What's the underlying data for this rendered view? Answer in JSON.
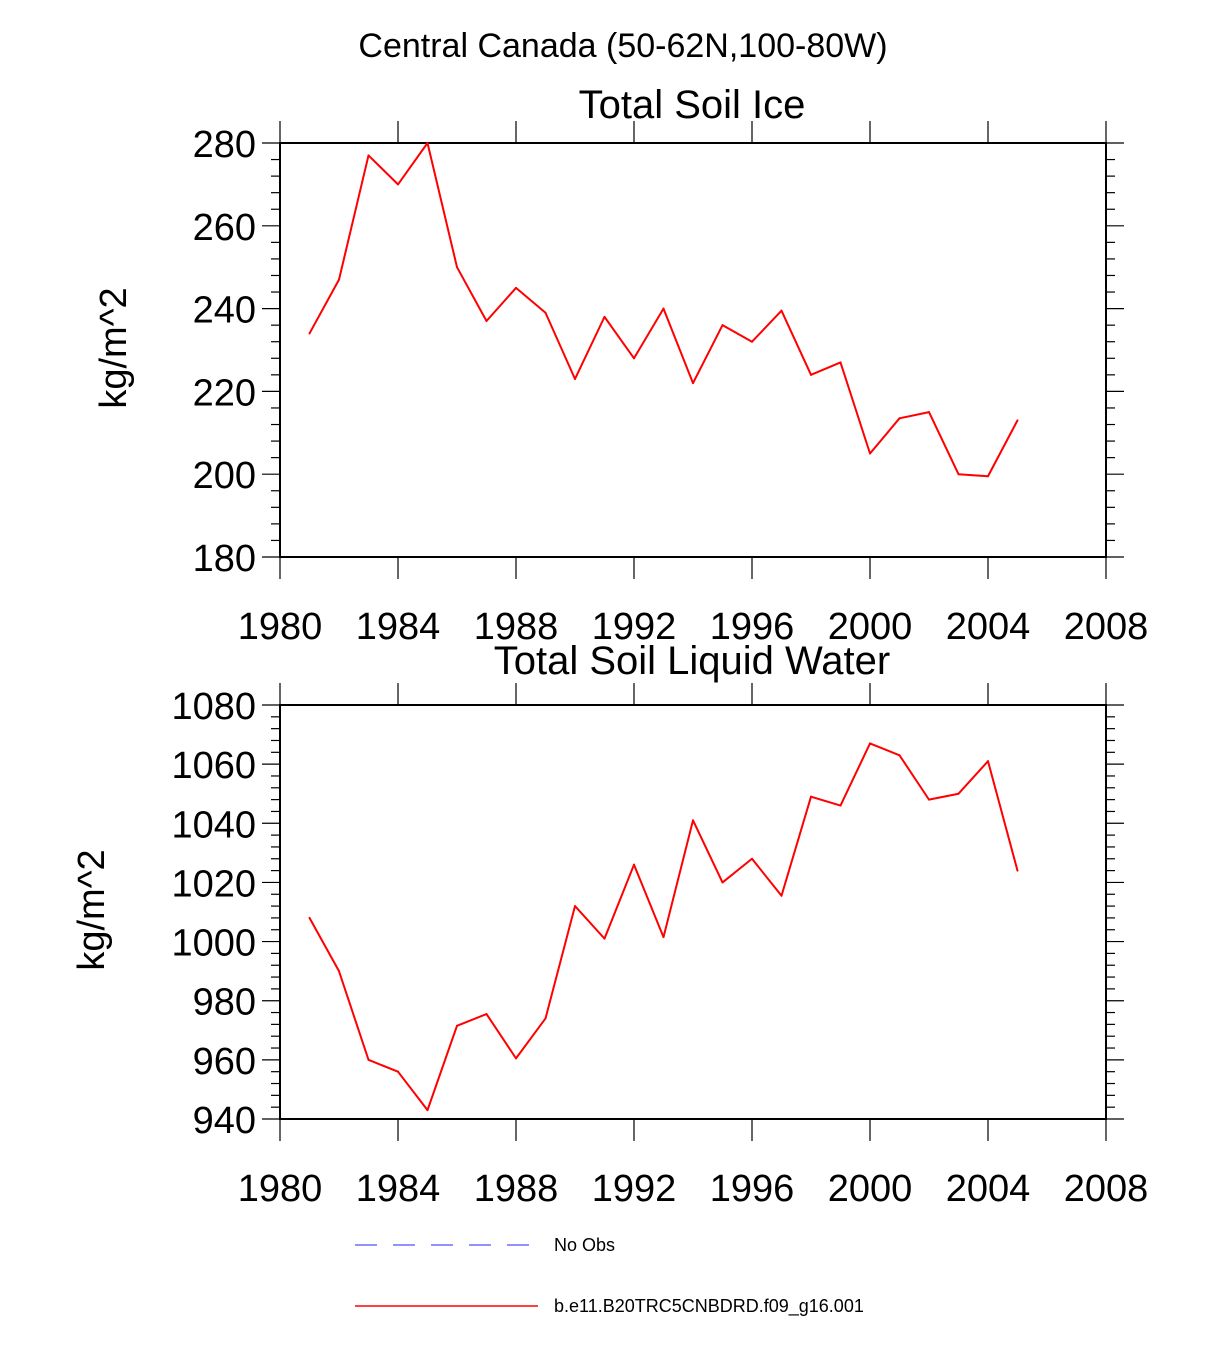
{
  "figure_title": "Central Canada (50-62N,100-80W)",
  "colors": {
    "model": "#ff0000",
    "obs": "#6f6fff",
    "axis": "#000000"
  },
  "chart_data": [
    {
      "type": "line",
      "title": "Total Soil Ice",
      "xlabel": "",
      "ylabel": "kg/m^2",
      "xlim": [
        1980,
        2008
      ],
      "ylim": [
        180,
        280
      ],
      "x_ticks": [
        1980,
        1984,
        1988,
        1992,
        1996,
        2000,
        2004,
        2008
      ],
      "y_ticks": [
        180,
        200,
        220,
        240,
        260,
        280
      ],
      "series": [
        {
          "name": "b.e11.B20TRC5CNBDRD.f09_g16.001",
          "x": [
            1981,
            1982,
            1983,
            1984,
            1985,
            1986,
            1987,
            1988,
            1989,
            1990,
            1991,
            1992,
            1993,
            1994,
            1995,
            1996,
            1997,
            1998,
            1999,
            2000,
            2001,
            2002,
            2003,
            2004,
            2005
          ],
          "values": [
            234,
            247,
            277,
            270,
            280,
            250,
            237,
            245,
            239,
            223,
            238,
            228,
            240,
            222,
            236,
            232,
            239.5,
            224,
            227,
            205,
            213.5,
            215,
            200,
            199.5,
            213
          ]
        }
      ]
    },
    {
      "type": "line",
      "title": "Total Soil Liquid Water",
      "xlabel": "",
      "ylabel": "kg/m^2",
      "xlim": [
        1980,
        2008
      ],
      "ylim": [
        940,
        1080
      ],
      "x_ticks": [
        1980,
        1984,
        1988,
        1992,
        1996,
        2000,
        2004,
        2008
      ],
      "y_ticks": [
        940,
        960,
        980,
        1000,
        1020,
        1040,
        1060,
        1080
      ],
      "series": [
        {
          "name": "b.e11.B20TRC5CNBDRD.f09_g16.001",
          "x": [
            1981,
            1982,
            1983,
            1984,
            1985,
            1986,
            1987,
            1988,
            1989,
            1990,
            1991,
            1992,
            1993,
            1994,
            1995,
            1996,
            1997,
            1998,
            1999,
            2000,
            2001,
            2002,
            2003,
            2004,
            2005
          ],
          "values": [
            1008,
            990,
            960,
            956,
            943,
            971.5,
            975.5,
            960.5,
            974,
            1012,
            1001,
            1026,
            1001.5,
            1041,
            1020,
            1028,
            1015.5,
            1049,
            1046,
            1067,
            1063,
            1048,
            1050,
            1061,
            1024
          ]
        }
      ]
    }
  ],
  "legend": [
    {
      "label": "No Obs",
      "style": "dashed",
      "color": "#6f6fff"
    },
    {
      "label": "b.e11.B20TRC5CNBDRD.f09_g16.001",
      "style": "solid",
      "color": "#ff0000"
    }
  ]
}
